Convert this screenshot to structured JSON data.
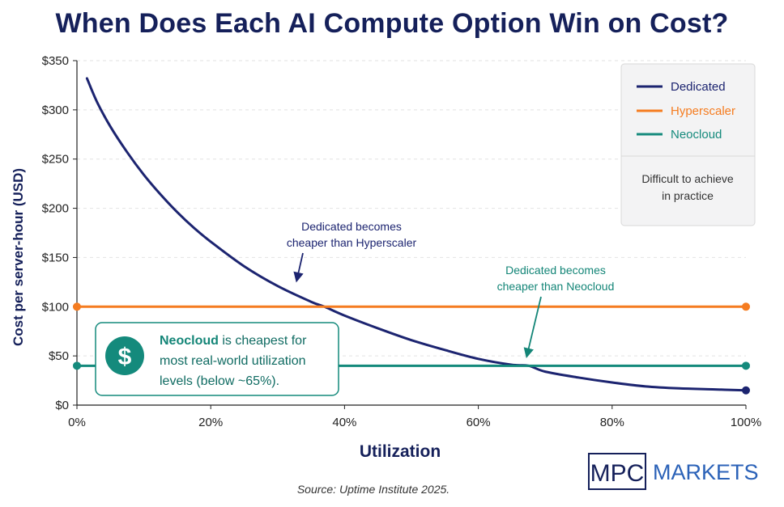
{
  "title": "When Does Each AI Compute Option Win on Cost?",
  "chart_data": {
    "type": "line",
    "xlabel": "Utilization",
    "ylabel": "Cost per server-hour (USD)",
    "xlim": [
      0,
      100
    ],
    "ylim": [
      0,
      350
    ],
    "x_ticks": [
      0,
      20,
      40,
      60,
      80,
      100
    ],
    "x_tick_labels": [
      "0%",
      "20%",
      "40%",
      "60%",
      "80%",
      "100%"
    ],
    "y_ticks": [
      0,
      50,
      100,
      150,
      200,
      250,
      300,
      350
    ],
    "y_tick_labels": [
      "$0",
      "$50",
      "$100",
      "$150",
      "$200",
      "$250",
      "$300",
      "$350"
    ],
    "grid": "horizontal dashed",
    "legend_position": "top-right",
    "series": [
      {
        "name": "Dedicated",
        "color": "#1c2470",
        "x": [
          1.5,
          3,
          5,
          7.5,
          10,
          12.5,
          15,
          17.5,
          20,
          25,
          30,
          35,
          37,
          40,
          45,
          50,
          55,
          60,
          65,
          67.5,
          70,
          75,
          80,
          85,
          90,
          95,
          100
        ],
        "values": [
          332,
          308,
          283,
          257,
          234,
          214,
          196,
          180,
          166,
          141,
          121,
          105,
          100,
          91,
          78,
          66,
          56,
          47,
          41,
          40,
          34,
          28,
          23,
          19,
          17,
          16,
          15
        ]
      },
      {
        "name": "Hyperscaler",
        "color": "#f57c20",
        "x": [
          0,
          100
        ],
        "values": [
          100,
          100
        ]
      },
      {
        "name": "Neocloud",
        "color": "#148a7c",
        "x": [
          0,
          100
        ],
        "values": [
          40,
          40
        ]
      }
    ],
    "annotations": [
      {
        "text_lines": [
          "Dedicated becomes",
          "cheaper than Hyperscaler"
        ],
        "color": "#1c2470",
        "arrow_to": [
          32,
          125
        ]
      },
      {
        "text_lines": [
          "Dedicated becomes",
          "cheaper than Neocloud"
        ],
        "color": "#138577",
        "arrow_to": [
          67,
          48
        ]
      }
    ],
    "legend_note_lines": [
      "Difficult to achieve",
      "in practice"
    ],
    "callout": {
      "icon": "dollar-icon",
      "bold": "Neocloud",
      "line1_rest": " is cheapest for",
      "line2": "most real-world utilization",
      "line3": "levels (below ~65%)."
    }
  },
  "source": "Source: Uptime Institute 2025.",
  "logo": {
    "left": "MPC",
    "right": "MARKETS"
  }
}
